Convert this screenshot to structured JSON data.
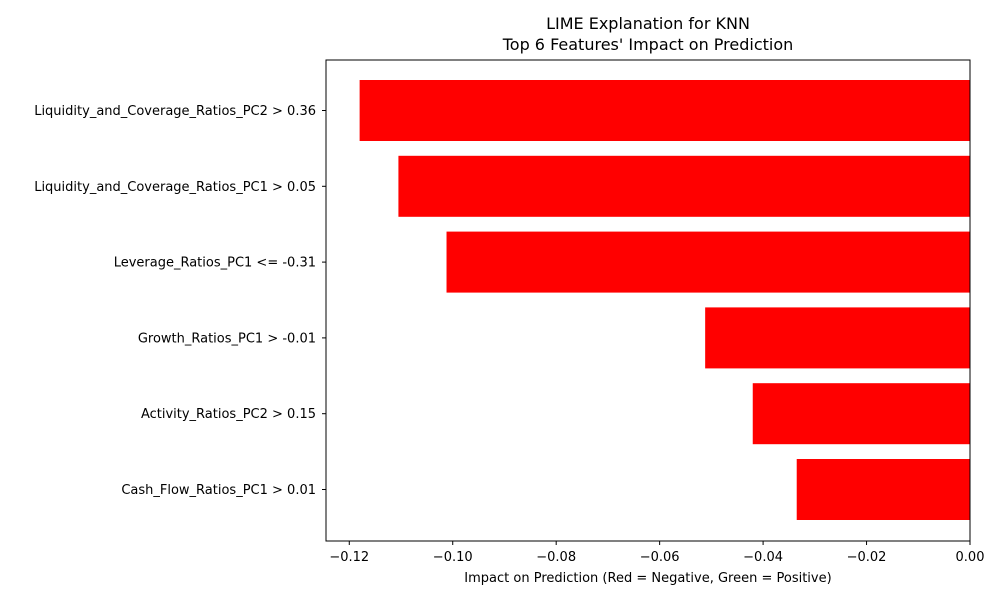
{
  "chart_data": {
    "type": "bar",
    "orientation": "horizontal",
    "title": "LIME Explanation for KNN",
    "subtitle": "Top 6 Features' Impact on Prediction",
    "xlabel": "Impact on Prediction (Red = Negative, Green = Positive)",
    "ylabel": "",
    "categories": [
      "Liquidity_and_Coverage_Ratios_PC2 > 0.36",
      "Liquidity_and_Coverage_Ratios_PC1 > 0.05",
      "Leverage_Ratios_PC1 <= -0.31",
      "Growth_Ratios_PC1 > -0.01",
      "Activity_Ratios_PC2 > 0.15",
      "Cash_Flow_Ratios_PC1 > 0.01"
    ],
    "values": [
      -0.118,
      -0.1105,
      -0.1012,
      -0.0512,
      -0.042,
      -0.0335
    ],
    "xlim": [
      -0.1245,
      0.0
    ],
    "xticks": [
      -0.12,
      -0.1,
      -0.08,
      -0.06,
      -0.04,
      -0.02,
      0.0
    ],
    "xtick_labels": [
      "−0.12",
      "−0.10",
      "−0.08",
      "−0.06",
      "−0.04",
      "−0.02",
      "0.00"
    ],
    "grid": false,
    "colors": {
      "negative": "#ff0000",
      "positive": "#008000"
    }
  }
}
